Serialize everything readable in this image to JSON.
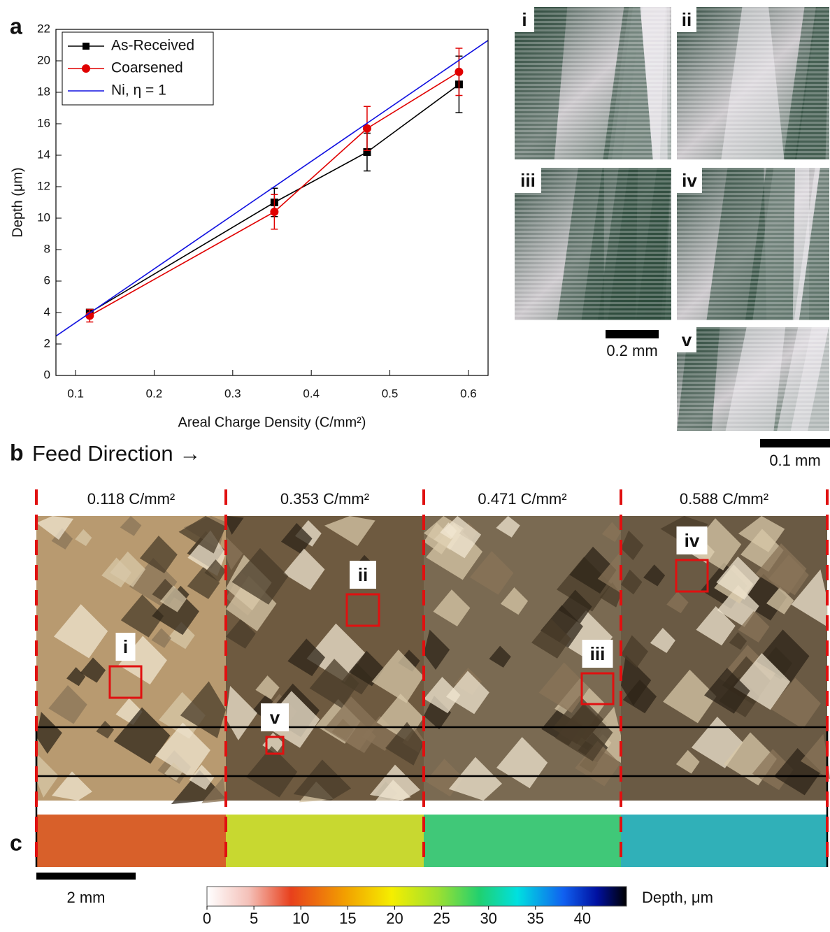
{
  "chart_data": {
    "type": "line",
    "panel_label": "a",
    "xlabel": "Areal Charge Density (C/mm²)",
    "ylabel": "Depth (μm)",
    "xlim": [
      0.075,
      0.625
    ],
    "ylim": [
      0,
      22
    ],
    "xticks": [
      0.1,
      0.2,
      0.3,
      0.4,
      0.5,
      0.6
    ],
    "yticks": [
      0,
      2,
      4,
      6,
      8,
      10,
      12,
      14,
      16,
      18,
      20,
      22
    ],
    "legend": "upper left",
    "series": [
      {
        "name": "As-Received",
        "color": "#000000",
        "marker": "square",
        "x": [
          0.118,
          0.353,
          0.471,
          0.588
        ],
        "values": [
          4.0,
          11.0,
          14.2,
          18.5
        ],
        "errors": [
          0.2,
          0.9,
          1.2,
          1.8
        ]
      },
      {
        "name": "Coarsened",
        "color": "#e00000",
        "marker": "circle",
        "x": [
          0.118,
          0.353,
          0.471,
          0.588
        ],
        "values": [
          3.8,
          10.4,
          15.7,
          19.3
        ],
        "errors": [
          0.4,
          1.1,
          1.4,
          1.5
        ]
      },
      {
        "name": "Ni,  η = 1",
        "color": "#1010e0",
        "marker": "none",
        "x": [
          0.075,
          0.625
        ],
        "values": [
          2.5,
          21.3
        ]
      }
    ]
  },
  "micrographs": {
    "labels": [
      "i",
      "ii",
      "iii",
      "iv",
      "v"
    ],
    "scale_bar_1": "0.2 mm",
    "scale_bar_2": "0.1 mm"
  },
  "panel_b": {
    "label": "b",
    "title": "Feed Direction →",
    "sections": [
      "0.118 C/mm²",
      "0.353 C/mm²",
      "0.471 C/mm²",
      "0.588 C/mm²"
    ],
    "regions": [
      "i",
      "ii",
      "iii",
      "iv",
      "v"
    ]
  },
  "panel_c": {
    "label": "c",
    "scale_bar": "2 mm",
    "colorbar": {
      "label": "Depth, μm",
      "lim": [
        0,
        44.7
      ],
      "ticks": [
        0,
        5,
        10,
        15,
        20,
        25,
        30,
        35,
        40
      ]
    }
  }
}
